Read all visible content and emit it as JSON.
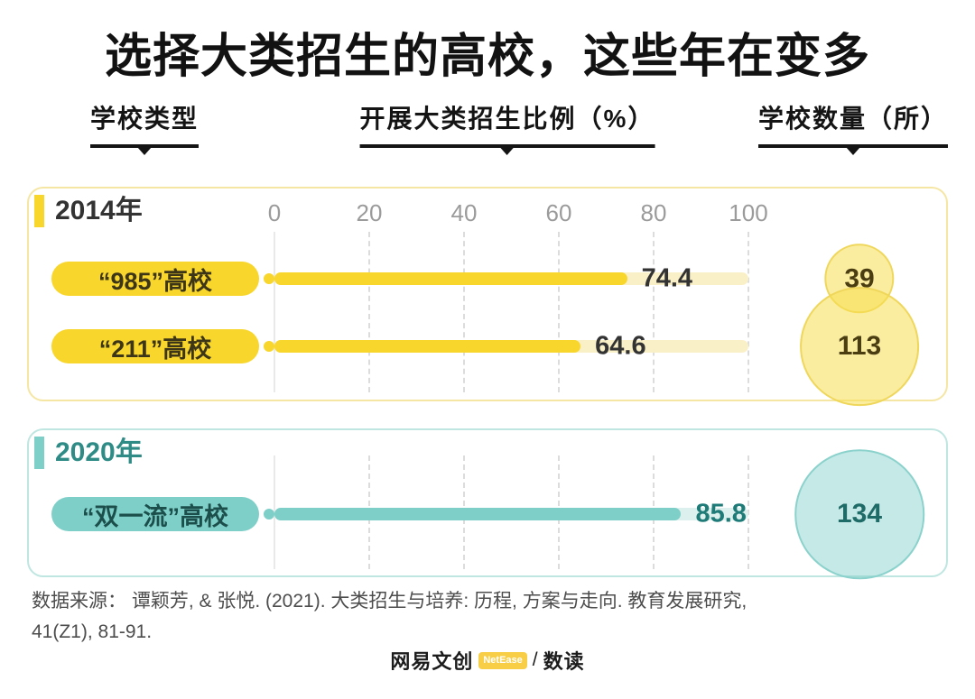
{
  "title": "选择大类招生的高校，这些年在变多",
  "headers": [
    {
      "label": "学校类型"
    },
    {
      "label": "开展大类招生比例（%）"
    },
    {
      "label": "学校数量（所）"
    }
  ],
  "axis": {
    "min": 0,
    "max": 100,
    "ticks": [
      "0",
      "20",
      "40",
      "60",
      "80",
      "100"
    ]
  },
  "panels": [
    {
      "year": "2014年",
      "rows": [
        {
          "label": "“985”高校",
          "ratio": 74.4,
          "ratio_label": "74.4",
          "count": 39,
          "count_label": "39"
        },
        {
          "label": "“211”高校",
          "ratio": 64.6,
          "ratio_label": "64.6",
          "count": 113,
          "count_label": "113"
        }
      ]
    },
    {
      "year": "2020年",
      "rows": [
        {
          "label": "“双一流”高校",
          "ratio": 85.8,
          "ratio_label": "85.8",
          "count": 134,
          "count_label": "134"
        }
      ]
    }
  ],
  "source": {
    "line1": "数据来源： 谭颖芳, & 张悦. (2021). 大类招生与培养: 历程, 方案与走向. 教育发展研究,",
    "line2": "41(Z1), 81-91."
  },
  "footer": {
    "brand": "网易文创",
    "badge": "NetEase",
    "separator": "/",
    "product": "数读"
  },
  "colors": {
    "yellow_accent": "#F8D62B",
    "yellow_track": "#FAF0C8",
    "yellow_panel_border": "#F5E6A3",
    "teal_accent": "#7FCFC9",
    "teal_track": "#DCF0EE",
    "teal_panel_border": "#BFE6E1",
    "teal_text": "#2E8B86",
    "tick_gray": "#9b9b9b"
  },
  "chart_data": {
    "type": "bar",
    "orientation": "horizontal",
    "title": "选择大类招生的高校，这些年在变多",
    "xlabel": "开展大类招生比例（%）",
    "xlim": [
      0,
      100
    ],
    "x_ticks": [
      0,
      20,
      40,
      60,
      80,
      100
    ],
    "grid": true,
    "legend": false,
    "groups": [
      {
        "group": "2014年",
        "categories": [
          "“985”高校",
          "“211”高校"
        ],
        "series": [
          {
            "name": "开展大类招生比例（%）",
            "values": [
              74.4,
              64.6
            ]
          },
          {
            "name": "学校数量（所）",
            "values": [
              39,
              113
            ]
          }
        ]
      },
      {
        "group": "2020年",
        "categories": [
          "“双一流”高校"
        ],
        "series": [
          {
            "name": "开展大类招生比例（%）",
            "values": [
              85.8
            ]
          },
          {
            "name": "学校数量（所）",
            "values": [
              134
            ]
          }
        ]
      }
    ],
    "source": "数据来源： 谭颖芳, & 张悦. (2021). 大类招生与培养: 历程, 方案与走向. 教育发展研究, 41(Z1), 81-91."
  }
}
